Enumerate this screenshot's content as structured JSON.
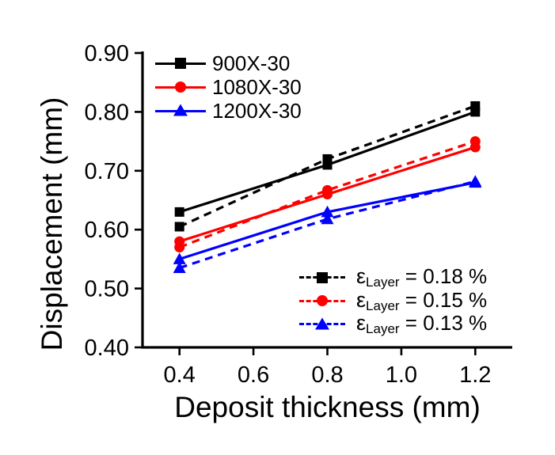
{
  "chart_data": {
    "type": "line",
    "title": "",
    "xlabel": "Deposit thickness (mm)",
    "ylabel": "Displacement (mm)",
    "x": [
      0.4,
      0.8,
      1.2
    ],
    "xlim": [
      0.3,
      1.3
    ],
    "ylim": [
      0.4,
      0.9
    ],
    "grid": false,
    "x_tick_values": [
      0.4,
      0.6,
      0.8,
      1.0,
      1.2
    ],
    "x_tick_labels": [
      "0.4",
      "0.6",
      "0.8",
      "1.0",
      "1.2"
    ],
    "y_tick_values": [
      0.4,
      0.5,
      0.6,
      0.7,
      0.8,
      0.9
    ],
    "y_tick_labels": [
      "0.40",
      "0.50",
      "0.60",
      "0.70",
      "0.80",
      "0.90"
    ],
    "legend_positions": {
      "solid_series": "top-left-inside",
      "dashed_series": "bottom-right-inside"
    },
    "series": [
      {
        "name": "900X-30",
        "line": "solid",
        "marker": "square",
        "color": "#000000",
        "values": [
          0.63,
          0.71,
          0.8
        ]
      },
      {
        "name": "1080X-30",
        "line": "solid",
        "marker": "circle",
        "color": "#ff0000",
        "values": [
          0.58,
          0.66,
          0.74
        ]
      },
      {
        "name": "1200X-30",
        "line": "solid",
        "marker": "triangle",
        "color": "#0000ff",
        "values": [
          0.55,
          0.63,
          0.68
        ]
      },
      {
        "name": "εLayer = 0.18 %",
        "line": "dashed",
        "marker": "square",
        "color": "#000000",
        "values": [
          0.605,
          0.72,
          0.81
        ]
      },
      {
        "name": "εLayer = 0.15 %",
        "line": "dashed",
        "marker": "circle",
        "color": "#ff0000",
        "values": [
          0.57,
          0.667,
          0.75
        ]
      },
      {
        "name": "εLayer = 0.13 %",
        "line": "dashed",
        "marker": "triangle",
        "color": "#0000ff",
        "values": [
          0.535,
          0.618,
          0.682
        ]
      }
    ]
  },
  "axes": {
    "xlabel": "Deposit thickness (mm)",
    "ylabel": "Displacement (mm)"
  },
  "colors": {
    "black_series": "#000000",
    "red_series": "#ff0000",
    "blue_series": "#0000ff",
    "axis": "#000000",
    "background": "#ffffff"
  },
  "legends": {
    "solid": {
      "items": [
        {
          "label": "900X-30",
          "color": "#000000",
          "marker": "square",
          "line": "solid"
        },
        {
          "label": "1080X-30",
          "color": "#ff0000",
          "marker": "circle",
          "line": "solid"
        },
        {
          "label": "1200X-30",
          "color": "#0000ff",
          "marker": "triangle",
          "line": "solid"
        }
      ]
    },
    "dashed": {
      "items": [
        {
          "symbol": "ε",
          "subscript": "Layer",
          "value": " = 0.18 %",
          "color": "#000000",
          "marker": "square",
          "line": "dashed"
        },
        {
          "symbol": "ε",
          "subscript": "Layer",
          "value": " = 0.15 %",
          "color": "#ff0000",
          "marker": "circle",
          "line": "dashed"
        },
        {
          "symbol": "ε",
          "subscript": "Layer",
          "value": " = 0.13 %",
          "color": "#0000ff",
          "marker": "triangle",
          "line": "dashed"
        }
      ]
    }
  }
}
